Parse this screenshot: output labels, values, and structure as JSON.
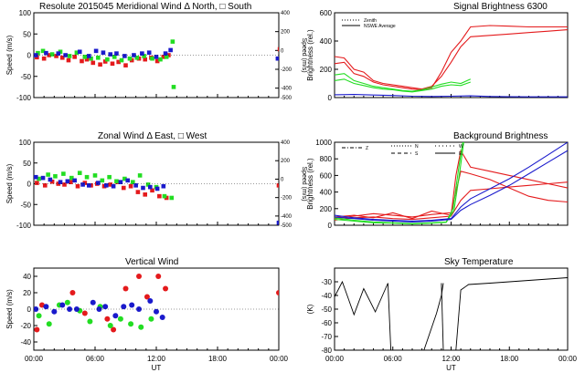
{
  "colors": {
    "red": "#e41a1c",
    "green": "#22dd22",
    "blue": "#1a1acc",
    "black": "#000000"
  },
  "xaxis": {
    "ticks": [
      "00:00",
      "06:00",
      "12:00",
      "18:00",
      "00:00"
    ],
    "label": "UT"
  },
  "chart_data": [
    {
      "id": "meridional",
      "type": "scatter",
      "title": "Resolute   2015045     Meridional Wind   Δ North,  □ South",
      "ylabel": "Speed (m/s)",
      "ylim": [
        -100,
        100
      ],
      "yticks": [
        -100,
        -50,
        0,
        50,
        100
      ],
      "ylabel_right": "Speed (m/s)",
      "ylim_right": [
        -500,
        400
      ],
      "yticks_right": [
        -500,
        -400,
        -200,
        0,
        200,
        400
      ],
      "xlim": [
        0,
        24
      ],
      "series": [
        {
          "color": "red",
          "x": [
            0.3,
            1.0,
            1.5,
            2.2,
            2.8,
            3.4,
            4.0,
            4.7,
            5.2,
            5.8,
            6.5,
            7.0,
            7.7,
            8.3,
            9.0,
            9.6,
            10.3,
            10.9,
            11.5,
            12.1,
            12.7,
            13.2,
            24.1
          ],
          "y": [
            -5,
            -8,
            0,
            -2,
            -6,
            -12,
            -4,
            -14,
            -10,
            -18,
            -22,
            -15,
            -20,
            -16,
            -24,
            -12,
            -8,
            -10,
            -6,
            -14,
            -4,
            0,
            14
          ]
        },
        {
          "color": "green",
          "x": [
            0.4,
            0.9,
            1.8,
            2.6,
            3.5,
            4.2,
            5.0,
            5.6,
            6.3,
            7.2,
            7.9,
            8.6,
            9.4,
            10.1,
            10.8,
            11.6,
            12.4,
            13.0,
            13.6,
            13.7
          ],
          "y": [
            5,
            10,
            2,
            8,
            -2,
            6,
            -4,
            -8,
            -6,
            -10,
            -4,
            -12,
            -8,
            -6,
            -2,
            -8,
            -10,
            -4,
            32,
            -75
          ]
        },
        {
          "color": "blue",
          "x": [
            0.2,
            1.2,
            2.4,
            3.1,
            4.5,
            5.4,
            6.1,
            6.8,
            7.5,
            8.1,
            8.9,
            9.8,
            10.6,
            11.3,
            12.0,
            12.9,
            13.4,
            23.9
          ],
          "y": [
            0,
            5,
            4,
            0,
            8,
            -2,
            10,
            6,
            2,
            4,
            -2,
            0,
            4,
            6,
            -4,
            4,
            12,
            -8
          ]
        }
      ]
    },
    {
      "id": "signal",
      "type": "line",
      "title": "Signal Brightness       6300",
      "ylabel": "Brightness (rel.)",
      "ylim": [
        0,
        600
      ],
      "yticks": [
        0,
        200,
        400,
        600
      ],
      "xlim": [
        0,
        24
      ],
      "legend": [
        "Zenith",
        "NSWE Average"
      ],
      "legend_position": "top-left",
      "series": [
        {
          "color": "red",
          "x": [
            0,
            1,
            2,
            3,
            4,
            5,
            6,
            7,
            8,
            9,
            10,
            11,
            12,
            13,
            14,
            16,
            18,
            20,
            22,
            24
          ],
          "y": [
            290,
            280,
            200,
            180,
            120,
            100,
            90,
            80,
            70,
            60,
            80,
            150,
            250,
            360,
            430,
            440,
            450,
            460,
            470,
            480
          ]
        },
        {
          "color": "red",
          "x": [
            0,
            1,
            2,
            3,
            4,
            5,
            6,
            7,
            8,
            9,
            10,
            11,
            12,
            13,
            14,
            16,
            18,
            20,
            22,
            24
          ],
          "y": [
            240,
            250,
            170,
            150,
            110,
            90,
            80,
            70,
            60,
            55,
            70,
            180,
            320,
            400,
            500,
            510,
            505,
            500,
            500,
            500
          ]
        },
        {
          "color": "green",
          "x": [
            0,
            1,
            2,
            3,
            4,
            5,
            6,
            7,
            8,
            9,
            10,
            11,
            12,
            13,
            14
          ],
          "y": [
            160,
            170,
            120,
            100,
            80,
            70,
            60,
            50,
            45,
            55,
            75,
            95,
            110,
            100,
            130
          ]
        },
        {
          "color": "green",
          "x": [
            0,
            1,
            2,
            3,
            4,
            5,
            6,
            7,
            8,
            9,
            10,
            11,
            12,
            13,
            14
          ],
          "y": [
            120,
            130,
            100,
            85,
            70,
            60,
            55,
            45,
            40,
            50,
            60,
            80,
            90,
            85,
            110
          ]
        },
        {
          "color": "blue",
          "x": [
            0,
            2,
            4,
            6,
            8,
            10,
            12,
            14,
            16,
            18,
            20,
            22,
            24
          ],
          "y": [
            20,
            22,
            18,
            15,
            10,
            8,
            10,
            12,
            8,
            6,
            5,
            5,
            5
          ]
        }
      ]
    },
    {
      "id": "zonal",
      "type": "scatter",
      "title": "Zonal Wind       Δ East,  □ West",
      "ylabel": "Speed (m/s)",
      "ylim": [
        -100,
        100
      ],
      "yticks": [
        -100,
        -50,
        0,
        50,
        100
      ],
      "ylabel_right": "Speed (m/s)",
      "ylim_right": [
        -500,
        400
      ],
      "yticks_right": [
        -500,
        -400,
        -200,
        0,
        200,
        400
      ],
      "xlim": [
        0,
        24
      ],
      "series": [
        {
          "color": "red",
          "x": [
            0.3,
            1.1,
            1.8,
            2.4,
            3.0,
            3.6,
            4.3,
            5.0,
            5.6,
            6.2,
            6.9,
            7.5,
            8.2,
            8.8,
            9.5,
            10.2,
            10.9,
            11.6,
            12.3,
            13.0,
            24.0
          ],
          "y": [
            2,
            -4,
            5,
            0,
            -2,
            4,
            -6,
            2,
            -4,
            0,
            -6,
            -2,
            4,
            -10,
            -6,
            -20,
            -26,
            -16,
            -30,
            -34,
            -4
          ]
        },
        {
          "color": "green",
          "x": [
            0.5,
            1.4,
            2.1,
            2.9,
            3.7,
            4.5,
            5.2,
            6.0,
            6.7,
            7.4,
            8.1,
            8.9,
            9.7,
            10.4,
            11.2,
            12.0,
            12.8,
            13.5
          ],
          "y": [
            12,
            22,
            18,
            24,
            14,
            26,
            16,
            20,
            8,
            16,
            6,
            12,
            4,
            20,
            -2,
            -8,
            -30,
            -34
          ]
        },
        {
          "color": "blue",
          "x": [
            0.2,
            0.9,
            1.6,
            2.6,
            3.3,
            4.0,
            4.8,
            5.4,
            6.3,
            7.1,
            7.8,
            8.5,
            9.2,
            10.0,
            10.7,
            11.4,
            12.1,
            12.7,
            24.2,
            24.0
          ],
          "y": [
            16,
            14,
            10,
            4,
            6,
            8,
            -2,
            -4,
            2,
            -4,
            -6,
            4,
            8,
            -4,
            -10,
            -8,
            -12,
            -6,
            44,
            -94
          ]
        }
      ]
    },
    {
      "id": "background",
      "type": "line",
      "title": "Background Brightness",
      "ylabel": "Brightness (rel.)",
      "ylim": [
        0,
        1000
      ],
      "yticks": [
        0,
        200,
        400,
        600,
        800,
        1000
      ],
      "xlim": [
        0,
        24
      ],
      "legend": [
        "Z",
        "N",
        "S",
        "W",
        "E"
      ],
      "legend_position": "top",
      "series": [
        {
          "color": "red",
          "x": [
            0,
            2,
            4,
            6,
            8,
            10,
            12,
            12.5,
            13,
            14,
            16,
            18,
            20,
            22,
            24
          ],
          "y": [
            100,
            120,
            90,
            150,
            80,
            170,
            120,
            600,
            900,
            700,
            650,
            600,
            550,
            500,
            450
          ]
        },
        {
          "color": "red",
          "x": [
            0,
            2,
            4,
            6,
            8,
            10,
            12,
            12.5,
            13,
            14,
            16,
            18,
            20,
            22,
            24
          ],
          "y": [
            80,
            110,
            140,
            120,
            100,
            130,
            150,
            400,
            650,
            620,
            550,
            450,
            350,
            300,
            280
          ]
        },
        {
          "color": "red",
          "x": [
            0,
            2,
            4,
            6,
            8,
            10,
            12,
            13,
            14,
            16,
            18,
            20,
            22,
            24
          ],
          "y": [
            60,
            90,
            100,
            80,
            70,
            90,
            110,
            300,
            420,
            440,
            460,
            480,
            500,
            520
          ]
        },
        {
          "color": "green",
          "x": [
            0,
            2,
            4,
            6,
            8,
            10,
            11.5,
            12.2,
            12.8,
            13.2
          ],
          "y": [
            90,
            60,
            40,
            30,
            20,
            30,
            40,
            200,
            700,
            1000
          ]
        },
        {
          "color": "green",
          "x": [
            0,
            2,
            4,
            6,
            8,
            10,
            11.5,
            12.3,
            12.9,
            13.3
          ],
          "y": [
            70,
            50,
            30,
            25,
            15,
            25,
            35,
            180,
            650,
            1000
          ]
        },
        {
          "color": "blue",
          "x": [
            0,
            2,
            4,
            6,
            8,
            10,
            12,
            13,
            14,
            16,
            18,
            20,
            22,
            24
          ],
          "y": [
            120,
            90,
            70,
            60,
            50,
            60,
            80,
            220,
            320,
            440,
            560,
            700,
            850,
            1000
          ]
        },
        {
          "color": "blue",
          "x": [
            0,
            2,
            4,
            6,
            8,
            10,
            12,
            13,
            14,
            16,
            18,
            20,
            22,
            24
          ],
          "y": [
            100,
            80,
            60,
            50,
            40,
            50,
            70,
            180,
            250,
            360,
            480,
            620,
            760,
            900
          ]
        }
      ]
    },
    {
      "id": "vertical",
      "type": "scatter",
      "title": "Vertical Wind",
      "ylabel": "Speed (m/s)",
      "ylim": [
        -50,
        50
      ],
      "yticks": [
        -40,
        -20,
        0,
        20,
        40
      ],
      "xlim": [
        0,
        24
      ],
      "series": [
        {
          "color": "red",
          "x": [
            0.3,
            0.8,
            3.8,
            5.0,
            7.2,
            7.8,
            9.0,
            10.3,
            11.1,
            12.2,
            12.9,
            24.0
          ],
          "y": [
            -25,
            5,
            20,
            -5,
            -12,
            -25,
            25,
            40,
            15,
            40,
            25,
            20
          ]
        },
        {
          "color": "green",
          "x": [
            0.5,
            1.5,
            2.5,
            3.3,
            4.5,
            5.5,
            6.5,
            7.5,
            8.5,
            9.5,
            10.5,
            11.5
          ],
          "y": [
            -8,
            -18,
            5,
            8,
            -2,
            -15,
            3,
            -20,
            -12,
            -18,
            -22,
            -12
          ]
        },
        {
          "color": "blue",
          "x": [
            0.2,
            1.2,
            2.0,
            2.8,
            3.5,
            4.2,
            5.8,
            6.4,
            7.0,
            8.0,
            8.8,
            9.6,
            10.3,
            11.4,
            12.0,
            12.6
          ],
          "y": [
            0,
            3,
            -3,
            5,
            0,
            0,
            8,
            0,
            3,
            -8,
            3,
            5,
            0,
            10,
            -3,
            -10
          ]
        }
      ]
    },
    {
      "id": "sky",
      "type": "line",
      "title": "Sky Temperature",
      "ylabel": "(K)",
      "ylim": [
        -80,
        -20
      ],
      "yticks": [
        -80,
        -70,
        -60,
        -50,
        -40,
        -30
      ],
      "xlim": [
        0,
        24
      ],
      "series": [
        {
          "color": "black",
          "x": [
            0,
            0.8,
            2,
            3,
            4.2,
            5.5,
            5.8
          ],
          "y": [
            -41,
            -30,
            -54,
            -35,
            -52,
            -31,
            -80
          ]
        },
        {
          "color": "black",
          "x": [
            9.2,
            10.5,
            11.0,
            11.2
          ],
          "y": [
            -80,
            -53,
            -40,
            -31
          ]
        },
        {
          "color": "black",
          "x": [
            11.0,
            11.2
          ],
          "y": [
            -31,
            -80
          ]
        },
        {
          "color": "black",
          "x": [
            12.5,
            13.0,
            13.8,
            16,
            18,
            20,
            22,
            24
          ],
          "y": [
            -80,
            -36,
            -32,
            -31,
            -30,
            -29,
            -28,
            -27
          ]
        }
      ]
    }
  ]
}
